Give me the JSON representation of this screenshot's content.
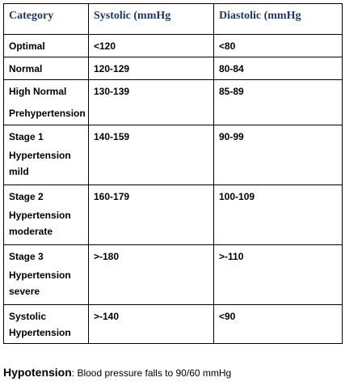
{
  "table": {
    "headers": [
      "Category",
      "Systolic (mmHg",
      "Diastolic (mmHg"
    ],
    "rows": [
      {
        "category": [
          "Optimal"
        ],
        "systolic": "<120",
        "diastolic": "<80"
      },
      {
        "category": [
          "Normal"
        ],
        "systolic": "120-129",
        "diastolic": "80-84"
      },
      {
        "category": [
          "High Normal",
          "Prehypertension"
        ],
        "systolic": "130-139",
        "diastolic": "85-89"
      },
      {
        "category": [
          "Stage 1",
          "Hypertension",
          "mild"
        ],
        "systolic": "140-159",
        "diastolic": "90-99"
      },
      {
        "category": [
          "Stage 2",
          "Hypertension",
          "moderate"
        ],
        "systolic": "160-179",
        "diastolic": "100-109"
      },
      {
        "category": [
          "Stage 3",
          "Hypertension",
          "severe"
        ],
        "systolic": ">-180",
        "diastolic": ">-110"
      },
      {
        "category": [
          "Systolic",
          "Hypertension"
        ],
        "systolic": ">-140",
        "diastolic": "<90"
      }
    ]
  },
  "footer": {
    "term": "Hypotension",
    "text": ": Blood pressure falls to 90/60 mmHg"
  }
}
